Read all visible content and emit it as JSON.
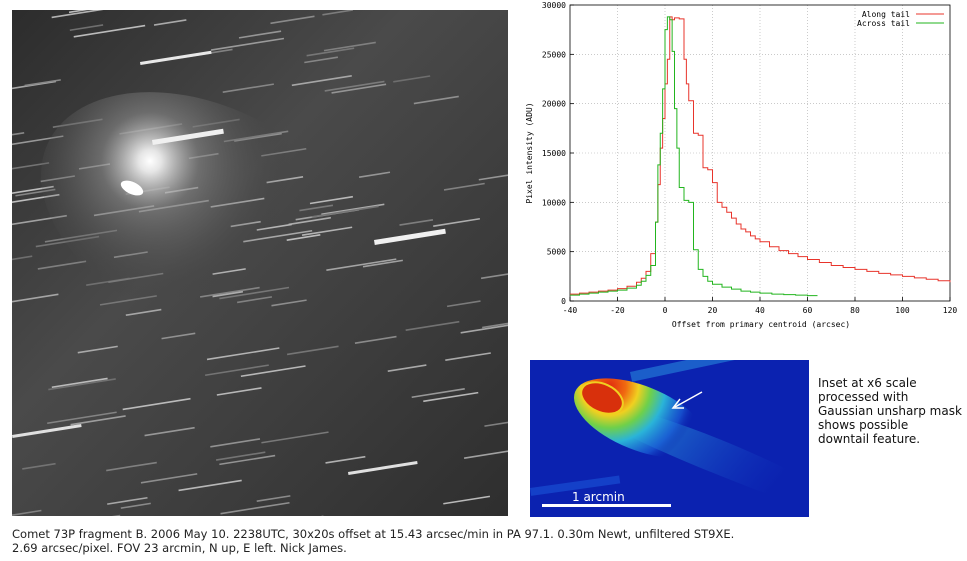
{
  "photo": {
    "description_icon": "comet-photo"
  },
  "chart_data": {
    "type": "line",
    "xlabel": "Offset from primary centroid (arcsec)",
    "ylabel": "Pixel intensity (ADU)",
    "xlim": [
      -40,
      120
    ],
    "ylim": [
      0,
      30000
    ],
    "xticks": [
      -40,
      -20,
      0,
      20,
      40,
      60,
      80,
      100,
      120
    ],
    "yticks": [
      0,
      5000,
      10000,
      15000,
      20000,
      25000,
      30000
    ],
    "grid": true,
    "legend_position": "top-right",
    "series": [
      {
        "name": "Along tail",
        "color": "#e8342b",
        "step": true,
        "x": [
          -40,
          -36,
          -32,
          -28,
          -24,
          -20,
          -16,
          -12,
          -10,
          -8,
          -6,
          -4,
          -3,
          -2,
          -1,
          0,
          1,
          2,
          3,
          4,
          6,
          8,
          9,
          10,
          12,
          14,
          16,
          18,
          20,
          22,
          24,
          26,
          28,
          30,
          32,
          34,
          36,
          38,
          40,
          44,
          48,
          52,
          56,
          60,
          65,
          70,
          75,
          80,
          85,
          90,
          95,
          100,
          105,
          110,
          115,
          120
        ],
        "y": [
          700,
          800,
          900,
          1000,
          1100,
          1250,
          1500,
          1900,
          2300,
          3000,
          4800,
          8000,
          11800,
          15500,
          18500,
          22000,
          24500,
          28800,
          28500,
          28700,
          28600,
          24500,
          22000,
          20300,
          17000,
          16800,
          13500,
          13300,
          12000,
          10000,
          9500,
          9000,
          8400,
          7800,
          7300,
          7000,
          6600,
          6300,
          6000,
          5500,
          5100,
          4800,
          4500,
          4200,
          3900,
          3600,
          3400,
          3200,
          3000,
          2800,
          2650,
          2500,
          2350,
          2200,
          2050,
          1900
        ]
      },
      {
        "name": "Across tail",
        "color": "#22b51e",
        "step": true,
        "x": [
          -40,
          -36,
          -32,
          -28,
          -24,
          -20,
          -16,
          -12,
          -10,
          -8,
          -6,
          -4,
          -3,
          -2,
          -1,
          0,
          1,
          2,
          3,
          4,
          5,
          6,
          8,
          10,
          12,
          14,
          16,
          18,
          20,
          24,
          28,
          32,
          36,
          40,
          45,
          50,
          55,
          60,
          64
        ],
        "y": [
          600,
          700,
          800,
          900,
          1000,
          1100,
          1300,
          1600,
          2000,
          2600,
          3600,
          8000,
          13800,
          17000,
          21500,
          27500,
          28800,
          28500,
          25300,
          19500,
          15500,
          11500,
          10200,
          10000,
          5200,
          3200,
          2500,
          2000,
          1700,
          1400,
          1200,
          1000,
          900,
          800,
          700,
          650,
          600,
          550,
          500
        ]
      }
    ]
  },
  "inset": {
    "scale_label": "1 arcmin",
    "note": "Inset at x6 scale processed with Gaussian unsharp mask shows possible downtail feature.",
    "arrow_icon": "arrow-icon"
  },
  "caption": {
    "line1": "Comet 73P fragment B. 2006 May 10. 2238UTC, 30x20s offset at 15.43 arcsec/min in PA 97.1. 0.30m Newt, unfiltered ST9XE.",
    "line2": "2.69 arcsec/pixel. FOV 23 arcmin, N up, E left. Nick James."
  }
}
